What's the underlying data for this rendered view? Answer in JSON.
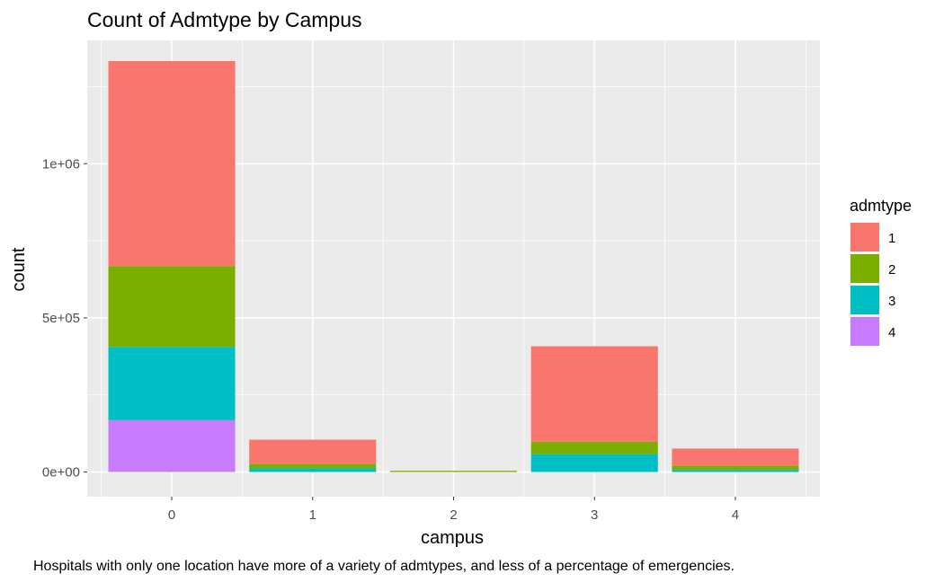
{
  "chart_data": {
    "type": "bar",
    "stacked": true,
    "title": "Count of Admtype by Campus",
    "caption": "Hospitals with only one location have more of a variety of admtypes, and less of a percentage of emergencies.",
    "xlabel": "campus",
    "ylabel": "count",
    "categories": [
      "0",
      "1",
      "2",
      "3",
      "4"
    ],
    "series": [
      {
        "name": "1",
        "color": "#F8766D",
        "values": [
          665000,
          78000,
          0,
          310000,
          55000
        ]
      },
      {
        "name": "2",
        "color": "#7CAE00",
        "values": [
          262000,
          15000,
          4000,
          40000,
          14000
        ]
      },
      {
        "name": "3",
        "color": "#00BFC4",
        "values": [
          238000,
          12000,
          0,
          58000,
          7000
        ]
      },
      {
        "name": "4",
        "color": "#C77CFF",
        "values": [
          168000,
          0,
          0,
          0,
          0
        ]
      }
    ],
    "ylim": [
      -80000,
      1400000
    ],
    "yticks": [
      0,
      500000,
      1000000
    ],
    "ytick_labels": [
      "0e+00",
      "5e+05",
      "1e+06"
    ],
    "legend": {
      "title": "admtype",
      "position": "right"
    },
    "grid": true,
    "panel_background": "#EBEBEB"
  }
}
